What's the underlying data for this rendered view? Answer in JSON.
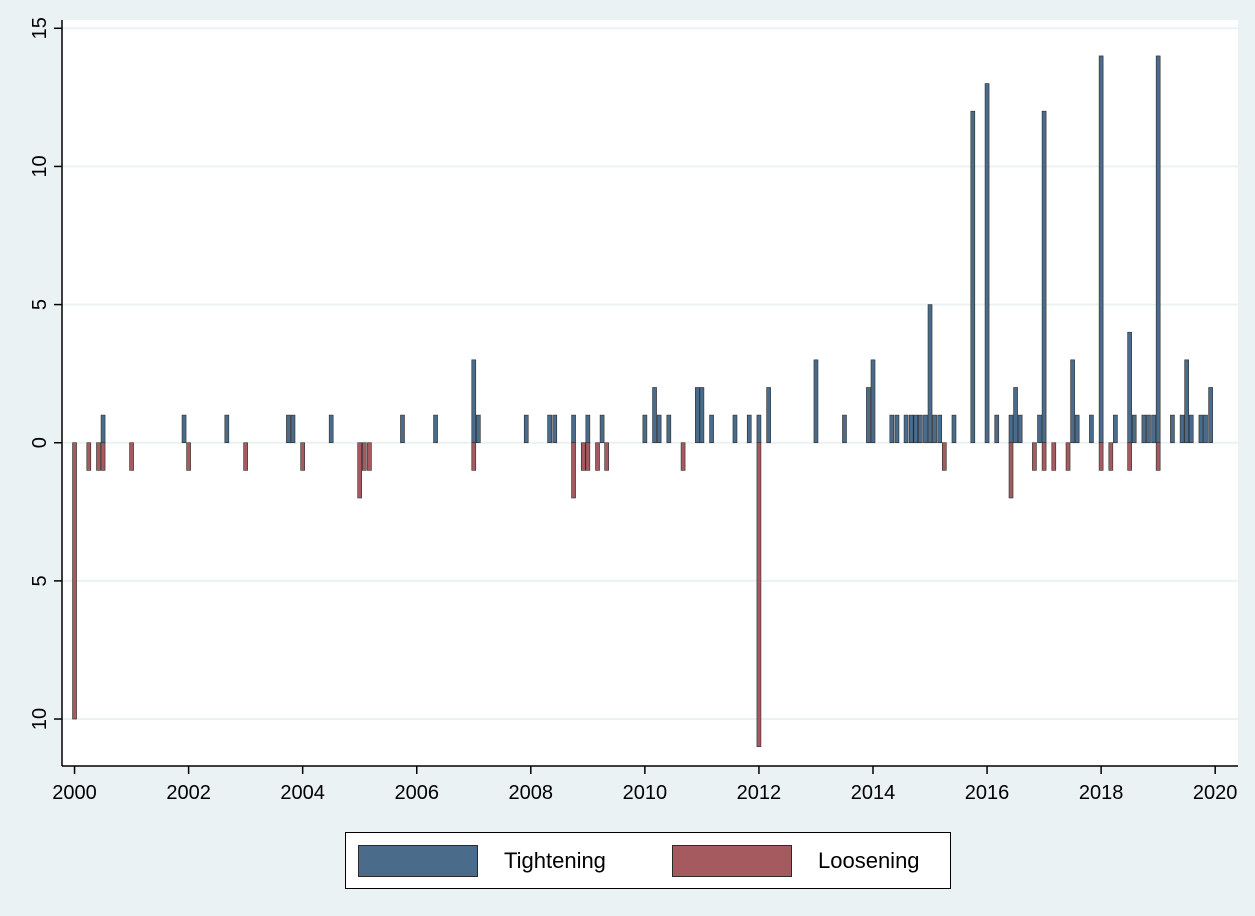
{
  "chart_data": {
    "type": "bar",
    "title": "",
    "xlabel": "",
    "ylabel": "",
    "xlim": [
      1999.78,
      2020.4
    ],
    "ylim": [
      -11.7,
      15.3
    ],
    "x_ticks": [
      2000,
      2002,
      2004,
      2006,
      2008,
      2010,
      2012,
      2014,
      2016,
      2018,
      2020
    ],
    "x_tick_labels": [
      "2000",
      "2002",
      "2004",
      "2006",
      "2008",
      "2010",
      "2012",
      "2014",
      "2016",
      "2018",
      "2020"
    ],
    "y_ticks": [
      -10,
      -5,
      0,
      5,
      10,
      15
    ],
    "y_tick_labels": [
      "10",
      "5",
      "0",
      "5",
      "10",
      "15"
    ],
    "grid": true,
    "legend_position": "bottom",
    "series": [
      {
        "name": "Tightening",
        "color": "#4a6b8a",
        "points": [
          [
            2000.5,
            1
          ],
          [
            2001.92,
            1
          ],
          [
            2002.67,
            1
          ],
          [
            2003.75,
            1
          ],
          [
            2003.83,
            1
          ],
          [
            2004.5,
            1
          ],
          [
            2005.75,
            1
          ],
          [
            2006.33,
            1
          ],
          [
            2007.0,
            3
          ],
          [
            2007.08,
            1
          ],
          [
            2007.92,
            1
          ],
          [
            2008.33,
            1
          ],
          [
            2008.42,
            1
          ],
          [
            2008.75,
            1
          ],
          [
            2009.0,
            1
          ],
          [
            2009.25,
            1
          ],
          [
            2010.0,
            1
          ],
          [
            2010.17,
            2
          ],
          [
            2010.25,
            1
          ],
          [
            2010.42,
            1
          ],
          [
            2010.92,
            2
          ],
          [
            2011.0,
            2
          ],
          [
            2011.17,
            1
          ],
          [
            2011.58,
            1
          ],
          [
            2011.83,
            1
          ],
          [
            2012.0,
            1
          ],
          [
            2012.17,
            2
          ],
          [
            2013.0,
            3
          ],
          [
            2013.5,
            1
          ],
          [
            2013.92,
            2
          ],
          [
            2014.0,
            3
          ],
          [
            2014.33,
            1
          ],
          [
            2014.42,
            1
          ],
          [
            2014.58,
            1
          ],
          [
            2014.67,
            1
          ],
          [
            2014.75,
            1
          ],
          [
            2014.83,
            1
          ],
          [
            2014.92,
            1
          ],
          [
            2015.0,
            5
          ],
          [
            2015.08,
            1
          ],
          [
            2015.17,
            1
          ],
          [
            2015.42,
            1
          ],
          [
            2015.75,
            12
          ],
          [
            2016.0,
            13
          ],
          [
            2016.17,
            1
          ],
          [
            2016.42,
            1
          ],
          [
            2016.5,
            2
          ],
          [
            2016.58,
            1
          ],
          [
            2016.92,
            1
          ],
          [
            2017.0,
            12
          ],
          [
            2017.5,
            3
          ],
          [
            2017.58,
            1
          ],
          [
            2017.83,
            1
          ],
          [
            2018.0,
            14
          ],
          [
            2018.25,
            1
          ],
          [
            2018.5,
            4
          ],
          [
            2018.58,
            1
          ],
          [
            2018.75,
            1
          ],
          [
            2018.83,
            1
          ],
          [
            2018.92,
            1
          ],
          [
            2019.0,
            14
          ],
          [
            2019.25,
            1
          ],
          [
            2019.42,
            1
          ],
          [
            2019.5,
            3
          ],
          [
            2019.58,
            1
          ],
          [
            2019.75,
            1
          ],
          [
            2019.83,
            1
          ],
          [
            2019.92,
            2
          ]
        ]
      },
      {
        "name": "Loosening",
        "color": "#a45a5f",
        "points": [
          [
            2000.0,
            -10
          ],
          [
            2000.25,
            -1
          ],
          [
            2000.42,
            -1
          ],
          [
            2000.5,
            -1
          ],
          [
            2001.0,
            -1
          ],
          [
            2002.0,
            -1
          ],
          [
            2003.0,
            -1
          ],
          [
            2004.0,
            -1
          ],
          [
            2005.0,
            -2
          ],
          [
            2005.08,
            -1
          ],
          [
            2005.17,
            -1
          ],
          [
            2007.0,
            -1
          ],
          [
            2008.75,
            -2
          ],
          [
            2008.92,
            -1
          ],
          [
            2009.0,
            -1
          ],
          [
            2009.17,
            -1
          ],
          [
            2009.33,
            -1
          ],
          [
            2010.67,
            -1
          ],
          [
            2012.0,
            -11
          ],
          [
            2015.25,
            -1
          ],
          [
            2016.42,
            -2
          ],
          [
            2016.83,
            -1
          ],
          [
            2017.0,
            -1
          ],
          [
            2017.17,
            -1
          ],
          [
            2017.42,
            -1
          ],
          [
            2018.0,
            -1
          ],
          [
            2018.17,
            -1
          ],
          [
            2018.5,
            -1
          ],
          [
            2019.0,
            -1
          ]
        ]
      }
    ]
  },
  "legend": {
    "items": [
      {
        "label": "Tightening",
        "color": "#4a6b8a"
      },
      {
        "label": "Loosening",
        "color": "#a45a5f"
      }
    ]
  }
}
